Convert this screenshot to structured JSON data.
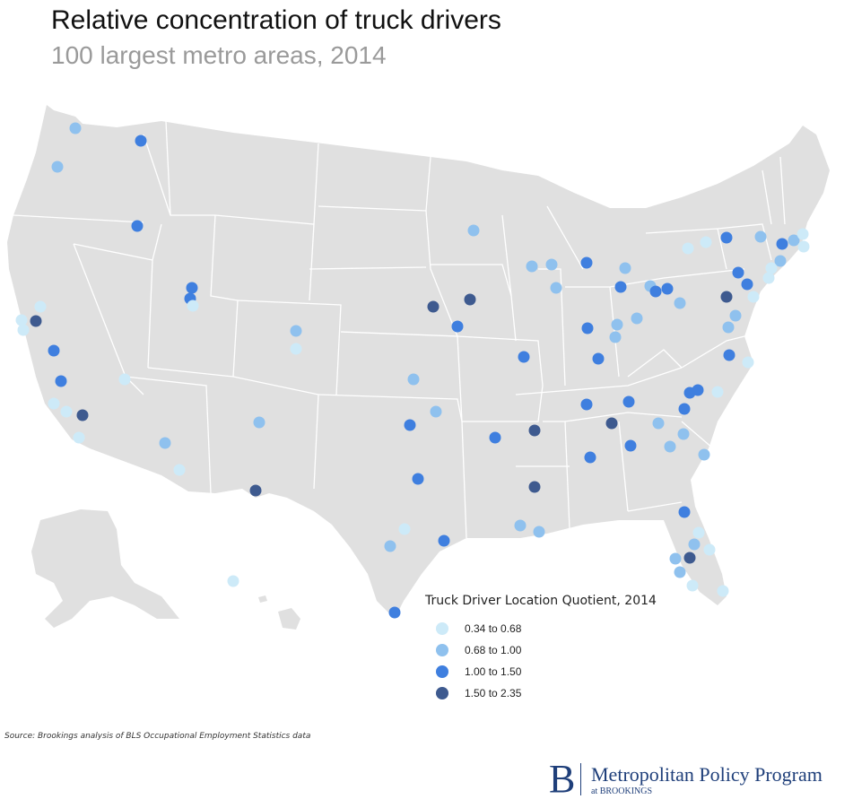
{
  "title": "Relative concentration of truck drivers",
  "subtitle": "100 largest metro areas, 2014",
  "legend": {
    "title": "Truck Driver Location Quotient, 2014",
    "items": [
      {
        "label": "0.34 to 0.68",
        "color": "#cdeaf8"
      },
      {
        "label": "0.68 to 1.00",
        "color": "#8fc1ee"
      },
      {
        "label": "1.00 to 1.50",
        "color": "#3f7fdf"
      },
      {
        "label": "1.50 to 2.35",
        "color": "#3e5a8f"
      }
    ]
  },
  "source": "Source: Brookings analysis of BLS Occupational Employment Statistics data",
  "logo": {
    "letter": "B",
    "name": "Metropolitan Policy Program",
    "sub": "at BROOKINGS"
  },
  "colors": {
    "land": "#e0e0e0",
    "borders": "#ffffff"
  }
}
